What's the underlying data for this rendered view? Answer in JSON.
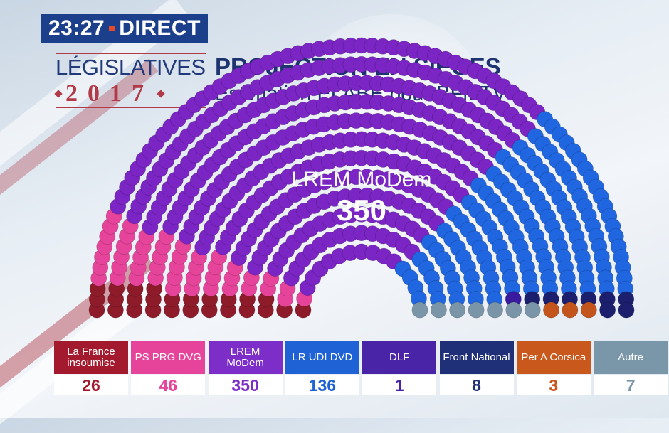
{
  "header": {
    "time": "23:27",
    "live": "DIRECT",
    "brand_line1": "LÉGISLATIVES",
    "brand_year": "2017",
    "title": "PROJECTION EN SIÈGES",
    "subtitle": "Estimation ELABE pour BFMTV"
  },
  "highlight": {
    "label": "LREM MoDem",
    "value": "350"
  },
  "chart_data": {
    "type": "hemicycle",
    "title": "PROJECTION EN SIÈGES",
    "subtitle": "Estimation ELABE pour BFMTV",
    "total_seats": 577,
    "series": [
      {
        "name": "La France insoumise",
        "seats": 26,
        "color": "#8e1b2a"
      },
      {
        "name": "PS PRG DVG",
        "seats": 46,
        "color": "#e6439a"
      },
      {
        "name": "LREM MoDem",
        "seats": 350,
        "color": "#7a25c4"
      },
      {
        "name": "LR UDI DVD",
        "seats": 136,
        "color": "#1f66e0"
      },
      {
        "name": "DLF",
        "seats": 1,
        "color": "#3a1a9e"
      },
      {
        "name": "Front National",
        "seats": 8,
        "color": "#1c1f6e"
      },
      {
        "name": "Per A Corsica",
        "seats": 3,
        "color": "#c2541c"
      },
      {
        "name": "Autre",
        "seats": 7,
        "color": "#7a95a8"
      }
    ]
  },
  "legend": [
    {
      "label": "La France insoumise",
      "value": "26",
      "color": "#a3192d",
      "text_color": "#a3192d"
    },
    {
      "label": "PS PRG DVG",
      "value": "46",
      "color": "#e6439a",
      "text_color": "#e6439a"
    },
    {
      "label": "LREM MoDem",
      "value": "350",
      "color": "#7d2dc8",
      "text_color": "#7d2dc8"
    },
    {
      "label": "LR UDI DVD",
      "value": "136",
      "color": "#1f62d6",
      "text_color": "#1f62d6"
    },
    {
      "label": "DLF",
      "value": "1",
      "color": "#4a24a6",
      "text_color": "#4a24a6"
    },
    {
      "label": "Front National",
      "value": "8",
      "color": "#1f2f78",
      "text_color": "#1f2f78"
    },
    {
      "label": "Per A Corsica",
      "value": "3",
      "color": "#c9581d",
      "text_color": "#c9581d"
    },
    {
      "label": "Autre",
      "value": "7",
      "color": "#7a96a9",
      "text_color": "#7a96a9"
    }
  ]
}
